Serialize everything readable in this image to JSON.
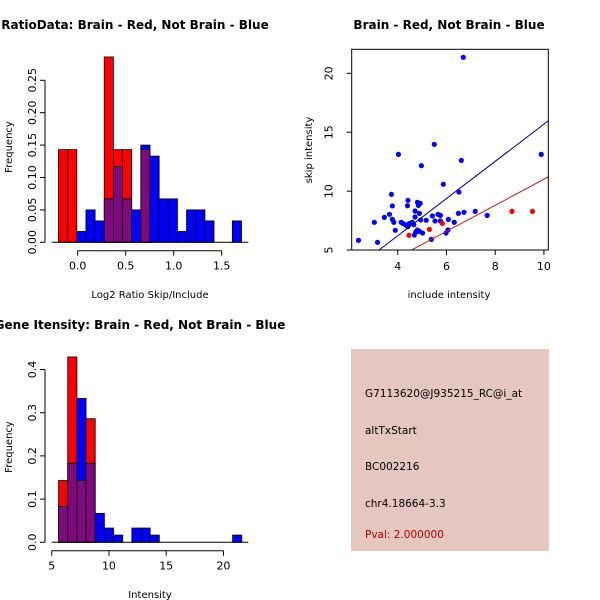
{
  "colors": {
    "red": "#ff0000",
    "blue": "#0000ff",
    "overlap": "#7f0a7f",
    "panel_bg": "#e5c7c0",
    "pval": "#b00000",
    "fit_blue": "#00008b",
    "fit_red": "#b22222"
  },
  "chart_data": [
    {
      "type": "bar",
      "title": "RatioData: Brain - Red, Not Brain - Blue",
      "xlabel": "Log2 Ratio Skip/Include",
      "ylabel": "Frequency",
      "xticks": [
        "0.0",
        "0.5",
        "1.0",
        "1.5"
      ],
      "xtick_values": [
        0,
        0.5,
        1.0,
        1.5
      ],
      "yticks": [
        "0.00",
        "0.05",
        "0.10",
        "0.15",
        "0.20",
        "0.25"
      ],
      "ytick_values": [
        0,
        0.05,
        0.1,
        0.15,
        0.2,
        0.25
      ],
      "xlim": [
        -0.2,
        1.75
      ],
      "ylim": [
        0,
        0.29
      ],
      "bin_start": -0.2,
      "bin_width": 0.0953,
      "series": [
        {
          "name": "Brain",
          "color": "red",
          "values": [
            0.143,
            0.143,
            0,
            0,
            0,
            0.286,
            0.143,
            0.143,
            0,
            0.143,
            0,
            0,
            0,
            0,
            0,
            0,
            0,
            0,
            0,
            0
          ]
        },
        {
          "name": "Not Brain",
          "color": "blue",
          "values": [
            0,
            0,
            0.0167,
            0.05,
            0.033,
            0.067,
            0.117,
            0.067,
            0.05,
            0.15,
            0.133,
            0.067,
            0.067,
            0.0167,
            0.05,
            0.05,
            0.033,
            0,
            0,
            0.033
          ]
        }
      ]
    },
    {
      "type": "scatter",
      "title": "Brain - Red, Not Brain - Blue",
      "xlabel": "include intensity",
      "ylabel": "skip intensity",
      "xticks": [
        "4",
        "6",
        "8",
        "10"
      ],
      "xtick_values": [
        4,
        6,
        8,
        10
      ],
      "yticks": [
        "5",
        "10",
        "15",
        "20"
      ],
      "ytick_values": [
        5,
        10,
        15,
        20
      ],
      "xlim": [
        2.11,
        10.18
      ],
      "ylim": [
        5,
        22.04
      ],
      "series": [
        {
          "name": "Not Brain",
          "color": "blue",
          "points": [
            [
              2.39,
              5.82
            ],
            [
              3.04,
              7.35
            ],
            [
              3.17,
              5.65
            ],
            [
              3.45,
              7.77
            ],
            [
              3.66,
              8.03
            ],
            [
              3.74,
              9.73
            ],
            [
              3.78,
              8.74
            ],
            [
              3.78,
              7.6
            ],
            [
              3.84,
              7.35
            ],
            [
              3.9,
              6.67
            ],
            [
              4.03,
              13.12
            ],
            [
              4.14,
              7.35
            ],
            [
              4.22,
              7.24
            ],
            [
              4.33,
              7.12
            ],
            [
              4.42,
              9.22
            ],
            [
              4.4,
              8.76
            ],
            [
              4.41,
              6.98
            ],
            [
              4.47,
              7.24
            ],
            [
              4.59,
              7.35
            ],
            [
              4.66,
              7.15
            ],
            [
              4.71,
              8.31
            ],
            [
              4.71,
              7.8
            ],
            [
              4.74,
              6.53
            ],
            [
              4.68,
              6.27
            ],
            [
              4.81,
              9.05
            ],
            [
              4.85,
              8.79
            ],
            [
              4.92,
              8.96
            ],
            [
              4.89,
              8.11
            ],
            [
              4.94,
              7.55
            ],
            [
              4.81,
              6.7
            ],
            [
              4.89,
              6.58
            ],
            [
              4.97,
              12.16
            ],
            [
              5.02,
              6.44
            ],
            [
              5.17,
              7.52
            ],
            [
              5.42,
              7.89
            ],
            [
              5.38,
              5.9
            ],
            [
              5.5,
              13.97
            ],
            [
              5.53,
              7.46
            ],
            [
              5.65,
              8.03
            ],
            [
              5.75,
              7.94
            ],
            [
              5.75,
              7.46
            ],
            [
              5.87,
              10.58
            ],
            [
              5.98,
              6.44
            ],
            [
              6.08,
              7.6
            ],
            [
              6.06,
              6.7
            ],
            [
              6.32,
              7.35
            ],
            [
              6.49,
              8.11
            ],
            [
              6.51,
              9.92
            ],
            [
              6.61,
              12.61
            ],
            [
              6.69,
              21.36
            ],
            [
              6.72,
              8.2
            ],
            [
              7.18,
              8.28
            ],
            [
              7.67,
              7.94
            ],
            [
              9.89,
              13.12
            ]
          ]
        },
        {
          "name": "Brain",
          "color": "red",
          "points": [
            [
              4.46,
              6.25
            ],
            [
              5.3,
              6.75
            ],
            [
              5.83,
              7.26
            ],
            [
              8.69,
              8.28
            ],
            [
              9.53,
              8.28
            ]
          ]
        }
      ],
      "fit_lines": [
        {
          "name": "Not Brain fit",
          "color": "fit_blue",
          "slope": 1.578,
          "intercept": -0.097
        },
        {
          "name": "Brain fit",
          "color": "fit_red",
          "slope": 1.106,
          "intercept": -0.05
        }
      ]
    },
    {
      "type": "bar",
      "title": "Gene Itensity: Brain - Red, Not Brain - Blue",
      "xlabel": "Intensity",
      "ylabel": "Frequency",
      "xticks": [
        "5",
        "10",
        "15",
        "20"
      ],
      "xtick_values": [
        5,
        10,
        15,
        20
      ],
      "yticks": [
        "0.0",
        "0.1",
        "0.2",
        "0.3",
        "0.4"
      ],
      "ytick_values": [
        0,
        0.1,
        0.2,
        0.3,
        0.4
      ],
      "xlim": [
        5,
        22
      ],
      "ylim": [
        0,
        0.43
      ],
      "bin_start": 5.6,
      "bin_width": 0.8,
      "series": [
        {
          "name": "Brain",
          "color": "red",
          "values": [
            0.143,
            0.429,
            0.143,
            0.286,
            0,
            0,
            0,
            0,
            0,
            0,
            0,
            0,
            0,
            0,
            0,
            0,
            0,
            0,
            0,
            0
          ]
        },
        {
          "name": "Not Brain",
          "color": "blue",
          "values": [
            0.083,
            0.183,
            0.333,
            0.183,
            0.067,
            0.033,
            0.0167,
            0,
            0.033,
            0.033,
            0.0167,
            0,
            0,
            0,
            0,
            0,
            0,
            0,
            0,
            0.0167
          ]
        }
      ]
    }
  ],
  "info_panel": {
    "probe_id": "G7113620@J935215_RC@i_at",
    "event_type": "altTxStart",
    "accession": "BC002216",
    "location": "chr4.18664-3.3",
    "pval": "Pval: 2.000000"
  }
}
